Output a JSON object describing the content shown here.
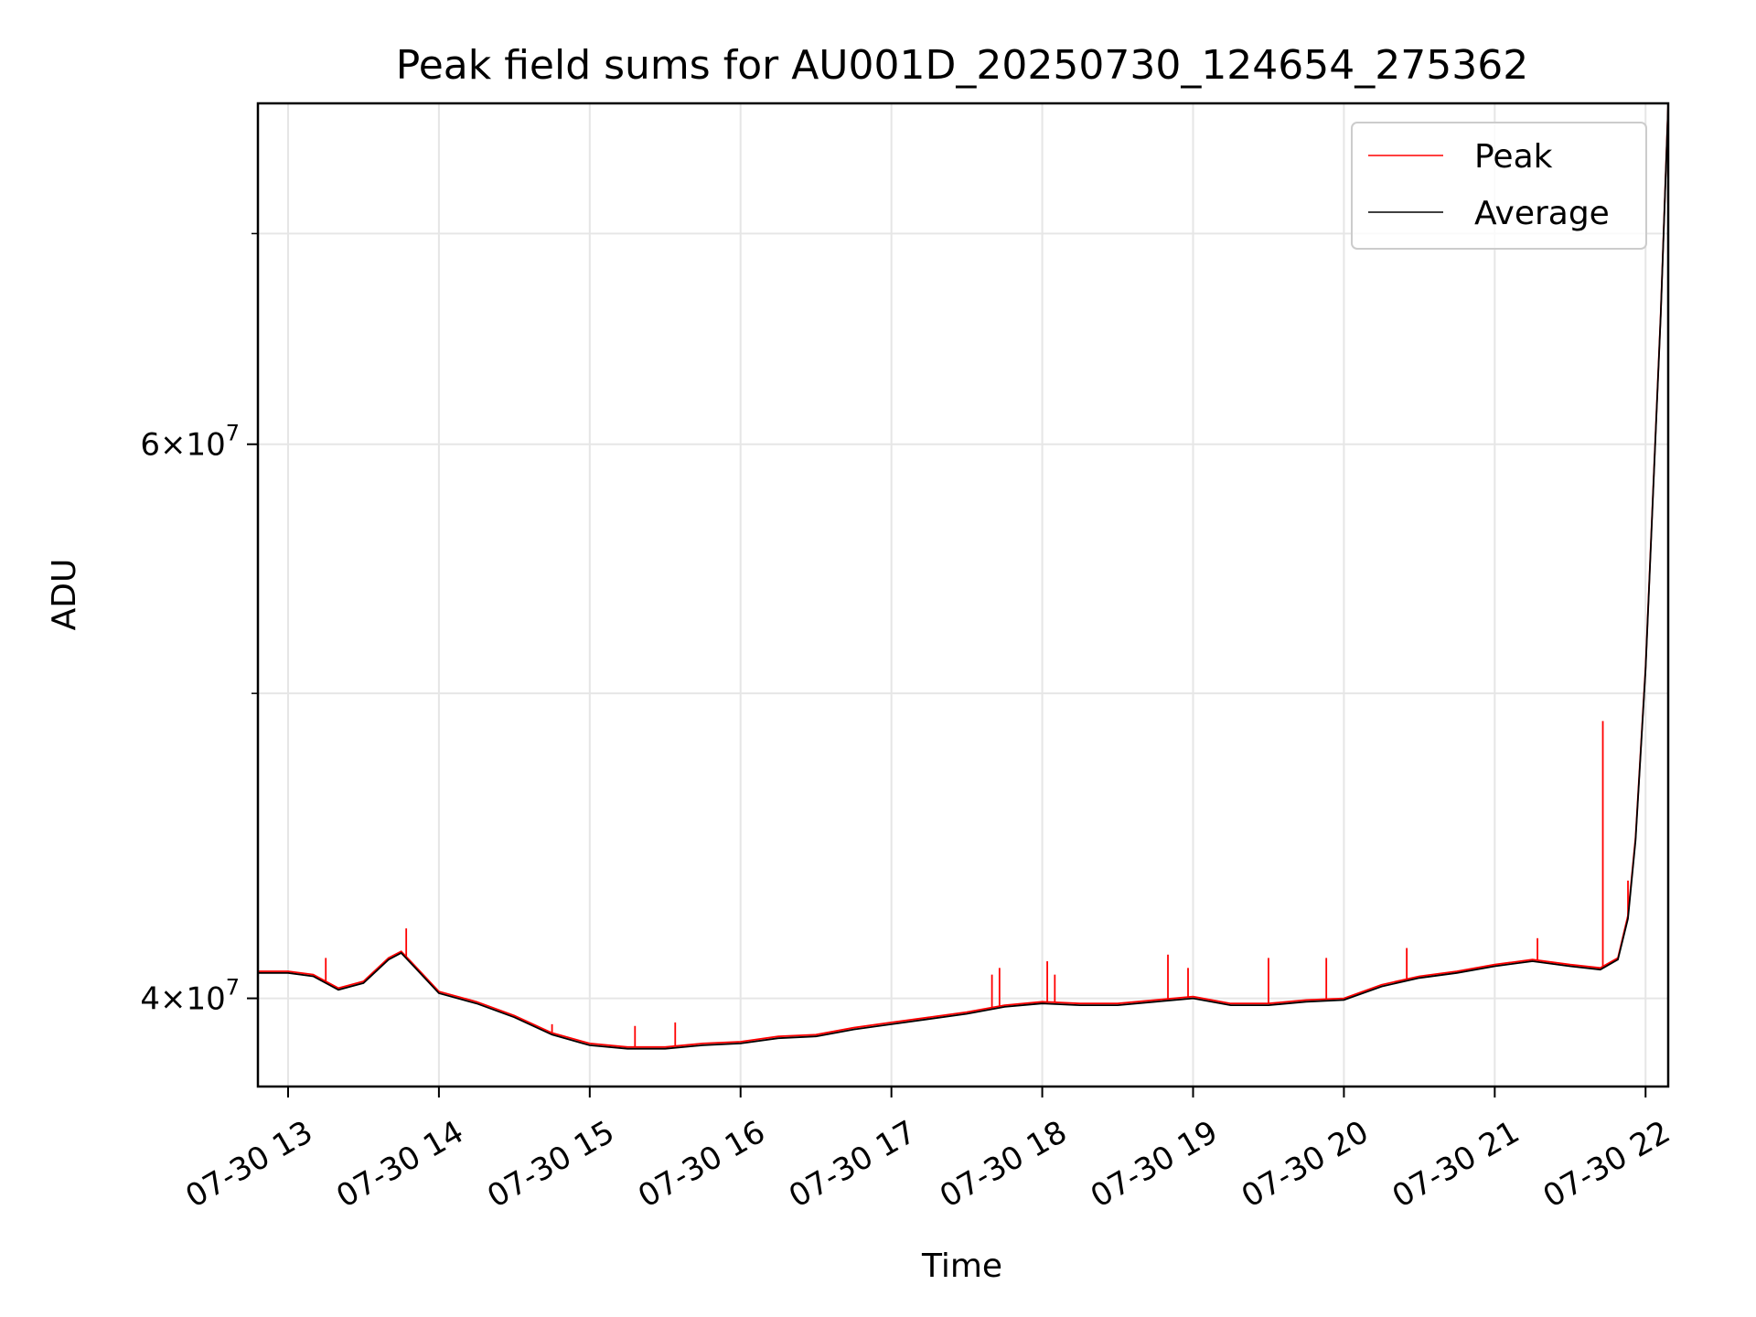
{
  "chart_data": {
    "type": "line",
    "title": "Peak field sums for AU001D_20250730_124654_275362",
    "xlabel": "Time",
    "ylabel": "ADU",
    "x_scale": "time",
    "y_scale": "log",
    "xlim": [
      "2025-07-30 12:48",
      "2025-07-30 22:09"
    ],
    "ylim": [
      37500000,
      77000000
    ],
    "grid": true,
    "legend_position": "top-right",
    "x_ticks": [
      {
        "label": "07-30 13",
        "value": "2025-07-30 13:00"
      },
      {
        "label": "07-30 14",
        "value": "2025-07-30 14:00"
      },
      {
        "label": "07-30 15",
        "value": "2025-07-30 15:00"
      },
      {
        "label": "07-30 16",
        "value": "2025-07-30 16:00"
      },
      {
        "label": "07-30 17",
        "value": "2025-07-30 17:00"
      },
      {
        "label": "07-30 18",
        "value": "2025-07-30 18:00"
      },
      {
        "label": "07-30 19",
        "value": "2025-07-30 19:00"
      },
      {
        "label": "07-30 20",
        "value": "2025-07-30 20:00"
      },
      {
        "label": "07-30 21",
        "value": "2025-07-30 21:00"
      },
      {
        "label": "07-30 22",
        "value": "2025-07-30 22:00"
      }
    ],
    "y_major_ticks": [
      {
        "base": "4",
        "exp": "7",
        "value": 40000000
      },
      {
        "base": "6",
        "exp": "7",
        "value": 60000000
      }
    ],
    "y_minor_ticks": [
      50000000,
      70000000,
      80000000,
      90000000,
      100000000
    ],
    "series": [
      {
        "name": "Peak",
        "color": "#ff0000",
        "points": [
          [
            "2025-07-30 12:48",
            40800000
          ],
          [
            "2025-07-30 13:00",
            40800000
          ],
          [
            "2025-07-30 13:10",
            40700000
          ],
          [
            "2025-07-30 13:20",
            40300000
          ],
          [
            "2025-07-30 13:30",
            40500000
          ],
          [
            "2025-07-30 13:40",
            41200000
          ],
          [
            "2025-07-30 13:45",
            41400000
          ],
          [
            "2025-07-30 13:50",
            41000000
          ],
          [
            "2025-07-30 14:00",
            40200000
          ],
          [
            "2025-07-30 14:15",
            39900000
          ],
          [
            "2025-07-30 14:30",
            39500000
          ],
          [
            "2025-07-30 14:45",
            39000000
          ],
          [
            "2025-07-30 15:00",
            38700000
          ],
          [
            "2025-07-30 15:15",
            38600000
          ],
          [
            "2025-07-30 15:30",
            38600000
          ],
          [
            "2025-07-30 15:45",
            38700000
          ],
          [
            "2025-07-30 16:00",
            38750000
          ],
          [
            "2025-07-30 16:15",
            38900000
          ],
          [
            "2025-07-30 16:30",
            38950000
          ],
          [
            "2025-07-30 16:45",
            39150000
          ],
          [
            "2025-07-30 17:00",
            39300000
          ],
          [
            "2025-07-30 17:15",
            39450000
          ],
          [
            "2025-07-30 17:30",
            39600000
          ],
          [
            "2025-07-30 17:45",
            39800000
          ],
          [
            "2025-07-30 18:00",
            39900000
          ],
          [
            "2025-07-30 18:15",
            39850000
          ],
          [
            "2025-07-30 18:30",
            39850000
          ],
          [
            "2025-07-30 18:45",
            39950000
          ],
          [
            "2025-07-30 19:00",
            40050000
          ],
          [
            "2025-07-30 19:15",
            39850000
          ],
          [
            "2025-07-30 19:30",
            39850000
          ],
          [
            "2025-07-30 19:45",
            39950000
          ],
          [
            "2025-07-30 20:00",
            40000000
          ],
          [
            "2025-07-30 20:15",
            40400000
          ],
          [
            "2025-07-30 20:30",
            40650000
          ],
          [
            "2025-07-30 20:45",
            40800000
          ],
          [
            "2025-07-30 21:00",
            41000000
          ],
          [
            "2025-07-30 21:15",
            41150000
          ],
          [
            "2025-07-30 21:30",
            41000000
          ],
          [
            "2025-07-30 21:42",
            40900000
          ],
          [
            "2025-07-30 21:49",
            41200000
          ],
          [
            "2025-07-30 21:53",
            42500000
          ],
          [
            "2025-07-30 21:56",
            45000000
          ],
          [
            "2025-07-30 22:00",
            51000000
          ],
          [
            "2025-07-30 22:03",
            58000000
          ],
          [
            "2025-07-30 22:06",
            66000000
          ],
          [
            "2025-07-30 22:09",
            77000000
          ]
        ],
        "spikes": [
          [
            "2025-07-30 13:15",
            41200000
          ],
          [
            "2025-07-30 13:47",
            42100000
          ],
          [
            "2025-07-30 14:45",
            39250000
          ],
          [
            "2025-07-30 15:18",
            39200000
          ],
          [
            "2025-07-30 15:34",
            39300000
          ],
          [
            "2025-07-30 17:40",
            40700000
          ],
          [
            "2025-07-30 17:43",
            40900000
          ],
          [
            "2025-07-30 18:02",
            41100000
          ],
          [
            "2025-07-30 18:05",
            40700000
          ],
          [
            "2025-07-30 18:50",
            41300000
          ],
          [
            "2025-07-30 18:58",
            40900000
          ],
          [
            "2025-07-30 19:30",
            41200000
          ],
          [
            "2025-07-30 19:53",
            41200000
          ],
          [
            "2025-07-30 20:25",
            41500000
          ],
          [
            "2025-07-30 21:17",
            41800000
          ],
          [
            "2025-07-30 21:43",
            49000000
          ],
          [
            "2025-07-30 21:53",
            43600000
          ]
        ]
      },
      {
        "name": "Average",
        "color": "#000000",
        "points": [
          [
            "2025-07-30 12:48",
            40750000
          ],
          [
            "2025-07-30 13:00",
            40750000
          ],
          [
            "2025-07-30 13:10",
            40650000
          ],
          [
            "2025-07-30 13:20",
            40250000
          ],
          [
            "2025-07-30 13:30",
            40450000
          ],
          [
            "2025-07-30 13:40",
            41150000
          ],
          [
            "2025-07-30 13:45",
            41350000
          ],
          [
            "2025-07-30 13:50",
            40950000
          ],
          [
            "2025-07-30 14:00",
            40150000
          ],
          [
            "2025-07-30 14:15",
            39850000
          ],
          [
            "2025-07-30 14:30",
            39450000
          ],
          [
            "2025-07-30 14:45",
            38950000
          ],
          [
            "2025-07-30 15:00",
            38650000
          ],
          [
            "2025-07-30 15:15",
            38550000
          ],
          [
            "2025-07-30 15:30",
            38550000
          ],
          [
            "2025-07-30 15:45",
            38650000
          ],
          [
            "2025-07-30 16:00",
            38700000
          ],
          [
            "2025-07-30 16:15",
            38850000
          ],
          [
            "2025-07-30 16:30",
            38900000
          ],
          [
            "2025-07-30 16:45",
            39100000
          ],
          [
            "2025-07-30 17:00",
            39250000
          ],
          [
            "2025-07-30 17:15",
            39400000
          ],
          [
            "2025-07-30 17:30",
            39550000
          ],
          [
            "2025-07-30 17:45",
            39750000
          ],
          [
            "2025-07-30 18:00",
            39850000
          ],
          [
            "2025-07-30 18:15",
            39800000
          ],
          [
            "2025-07-30 18:30",
            39800000
          ],
          [
            "2025-07-30 18:45",
            39900000
          ],
          [
            "2025-07-30 19:00",
            40000000
          ],
          [
            "2025-07-30 19:15",
            39800000
          ],
          [
            "2025-07-30 19:30",
            39800000
          ],
          [
            "2025-07-30 19:45",
            39900000
          ],
          [
            "2025-07-30 20:00",
            39950000
          ],
          [
            "2025-07-30 20:15",
            40350000
          ],
          [
            "2025-07-30 20:30",
            40600000
          ],
          [
            "2025-07-30 20:45",
            40750000
          ],
          [
            "2025-07-30 21:00",
            40950000
          ],
          [
            "2025-07-30 21:15",
            41100000
          ],
          [
            "2025-07-30 21:30",
            40950000
          ],
          [
            "2025-07-30 21:42",
            40850000
          ],
          [
            "2025-07-30 21:49",
            41150000
          ],
          [
            "2025-07-30 21:53",
            42400000
          ],
          [
            "2025-07-30 21:56",
            44900000
          ],
          [
            "2025-07-30 22:00",
            50900000
          ],
          [
            "2025-07-30 22:03",
            57900000
          ],
          [
            "2025-07-30 22:06",
            65900000
          ],
          [
            "2025-07-30 22:09",
            76900000
          ]
        ]
      }
    ]
  }
}
